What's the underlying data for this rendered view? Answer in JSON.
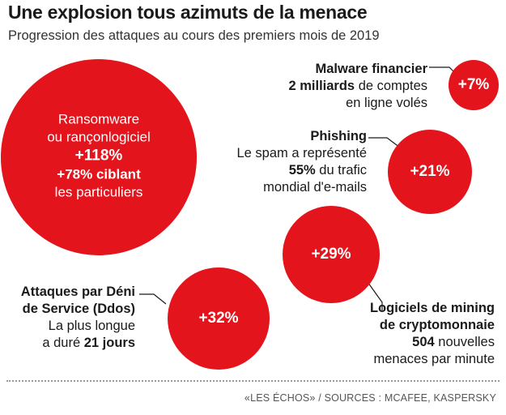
{
  "title": "Une explosion tous azimuts de la menace",
  "subtitle": "Progression des attaques au cours des premiers mois de 2019",
  "source": "«LES ÉCHOS» / SOURCES : MCAFEE, KASPERSKY",
  "colors": {
    "circle": "#e3141c",
    "leader": "#1a1a1a"
  },
  "chart_data": {
    "type": "bubble",
    "title": "Une explosion tous azimuts de la menace",
    "subtitle": "Progression des attaques au cours des premiers mois de 2019",
    "unit": "%",
    "items": [
      {
        "name": "Ransomware ou rançonlogiciel",
        "name_line1": "Ransomware",
        "name_line2": "ou rançonlogiciel",
        "value": 118,
        "value_label": "+118%",
        "detail_line1": "+78% ciblant",
        "detail_line2": "les particuliers"
      },
      {
        "name": "Malware financier",
        "value": 7,
        "value_label": "+7%",
        "detail_bold": "2 milliards",
        "detail_line1_rest": " de comptes",
        "detail_line2": "en ligne volés"
      },
      {
        "name": "Phishing",
        "value": 21,
        "value_label": "+21%",
        "detail_line1": "Le spam a représenté",
        "detail_bold": "55%",
        "detail_line2_rest": " du trafic",
        "detail_line3": "mondial d'e-mails"
      },
      {
        "name": "Logiciels de mining de cryptomonnaie",
        "name_line1": "Logiciels de mining",
        "name_line2": "de cryptomonnaie",
        "value": 29,
        "value_label": "+29%",
        "detail_bold": "504",
        "detail_line1_rest": " nouvelles",
        "detail_line2": "menaces par minute"
      },
      {
        "name": "Attaques par Déni de Service (Ddos)",
        "name_line1": "Attaques par Déni",
        "name_line2": "de Service (Ddos)",
        "value": 32,
        "value_label": "+32%",
        "detail_line1": "La plus longue",
        "detail_line2_pre": "a duré ",
        "detail_bold": "21 jours"
      }
    ]
  }
}
